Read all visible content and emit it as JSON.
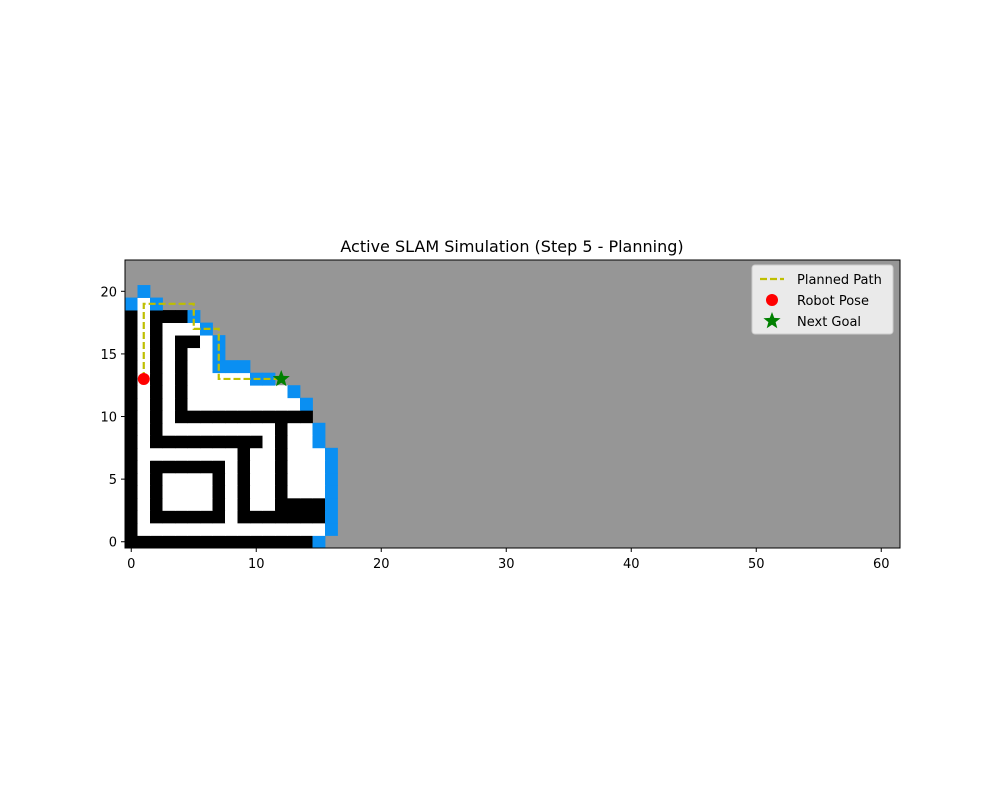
{
  "title": "Active SLAM Simulation (Step 5 - Planning)",
  "colors": {
    "unknown": "#969696",
    "free": "#ffffff",
    "wall": "#000000",
    "frontier": "#0a8ff2",
    "path": "#bfbf00",
    "robot": "#ff0000",
    "goal": "#008000"
  },
  "axes": {
    "xlim": [
      -0.5,
      61.5
    ],
    "ylim": [
      -0.5,
      22.5
    ],
    "xticks": [
      0,
      10,
      20,
      30,
      40,
      50,
      60
    ],
    "yticks": [
      0,
      5,
      10,
      15,
      20
    ]
  },
  "grid_map": {
    "legend_codes": "row y listed top (20) to bottom (0), column x = 0..16; '.' unknown, 'F' free, 'W' wall, 'B' frontier",
    "rows": {
      "20": ".B...............",
      "19": "BFB..............",
      "18": "WFWWWB...........",
      "17": "WFWFFFB..........",
      "16": "WFWFWWFB.........",
      "15": "WFWFWFFB.........",
      "14": "WFWFWFFBBB.......",
      "13": "WFWFWFFFFFBB.....",
      "12": "WFWFWFFFFFFFFB...",
      "11": "WFWFWFFFFFFFFFB..",
      "10": "WFWFWWWWWWWWWWW..",
      "9": "WFWFFFFFFFFFWFFB.",
      "8": "WFWWWWWWWWWFWFFB.",
      "7": "WFFFFFFFFWFFWFFFB",
      "6": "WFWWWWWWFWFFWFFFB",
      "5": "WFWFFFFWFWFFWFFFB",
      "4": "WFWFFFFWFWFFWFFFB",
      "3": "WFWFFFFWFWFFWWWWB",
      "2": "WFWWWWWWFWWWWWWWB",
      "1": "WFFFFFFFFFFFFFFFB",
      "0": "WWWWWWWWWWWWWWWB."
    }
  },
  "chart_data": {
    "type": "scatter",
    "title": "Active SLAM Simulation (Step 5 - Planning)",
    "xlim": [
      -0.5,
      61.5
    ],
    "ylim": [
      -0.5,
      22.5
    ],
    "legend_position": "top-right",
    "series": [
      {
        "name": "Planned Path",
        "kind": "line",
        "style": "dashed",
        "points": [
          [
            1,
            13
          ],
          [
            1,
            19
          ],
          [
            5,
            19
          ],
          [
            5,
            17
          ],
          [
            7,
            17
          ],
          [
            7,
            13
          ],
          [
            12,
            13
          ]
        ]
      },
      {
        "name": "Robot Pose",
        "kind": "marker",
        "marker": "circle",
        "points": [
          [
            1,
            13
          ]
        ]
      },
      {
        "name": "Next Goal",
        "kind": "marker",
        "marker": "star",
        "points": [
          [
            12,
            13
          ]
        ]
      }
    ]
  }
}
